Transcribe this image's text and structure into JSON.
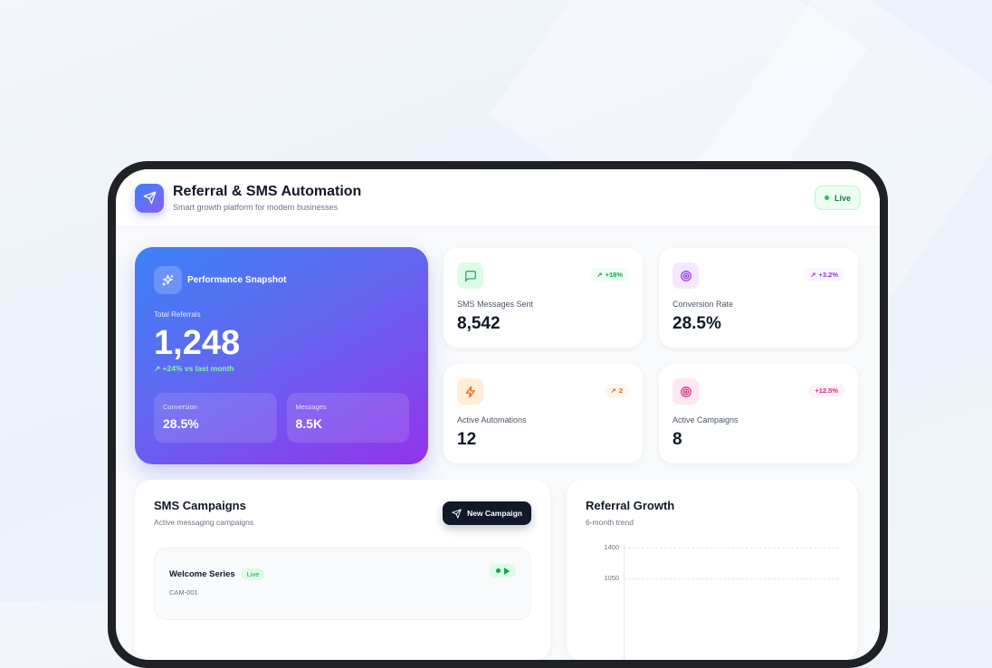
{
  "header": {
    "title": "Referral & SMS Automation",
    "subtitle": "Smart growth platform for modern businesses",
    "status": "Live",
    "logo_icon": "send-icon"
  },
  "hero": {
    "title": "Performance Snapshot",
    "icon": "sparkles-icon",
    "total_label": "Total Referrals",
    "total_value": "1,248",
    "trend": "+24% vs last month",
    "minis": [
      {
        "label": "Conversion",
        "value": "28.5%"
      },
      {
        "label": "Messages",
        "value": "8.5K"
      }
    ]
  },
  "stats": [
    {
      "label": "SMS Messages Sent",
      "value": "8,542",
      "badge": "+18%",
      "icon": "message-square-icon",
      "color": "#16a34a",
      "bg": "#dcfce7"
    },
    {
      "label": "Conversion Rate",
      "value": "28.5%",
      "badge": "+3.2%",
      "icon": "target-icon",
      "color": "#9333ea",
      "bg": "#f3e8ff"
    },
    {
      "label": "Active Automations",
      "value": "12",
      "badge": "2",
      "icon": "zap-icon",
      "color": "#ea580c",
      "bg": "#ffedd5"
    },
    {
      "label": "Active Campaigns",
      "value": "8",
      "badge": "+12.5%",
      "icon": "target-icon",
      "color": "#db2777",
      "bg": "#fce7f3"
    }
  ],
  "campaigns": {
    "title": "SMS Campaigns",
    "subtitle": "Active messaging campaigns",
    "new_button": "New Campaign",
    "items": [
      {
        "name": "Welcome Series",
        "status": "Live",
        "id": "CAM-001"
      }
    ]
  },
  "growth": {
    "title": "Referral Growth",
    "subtitle": "6-month trend",
    "y_ticks": [
      "1400",
      "1050"
    ]
  }
}
